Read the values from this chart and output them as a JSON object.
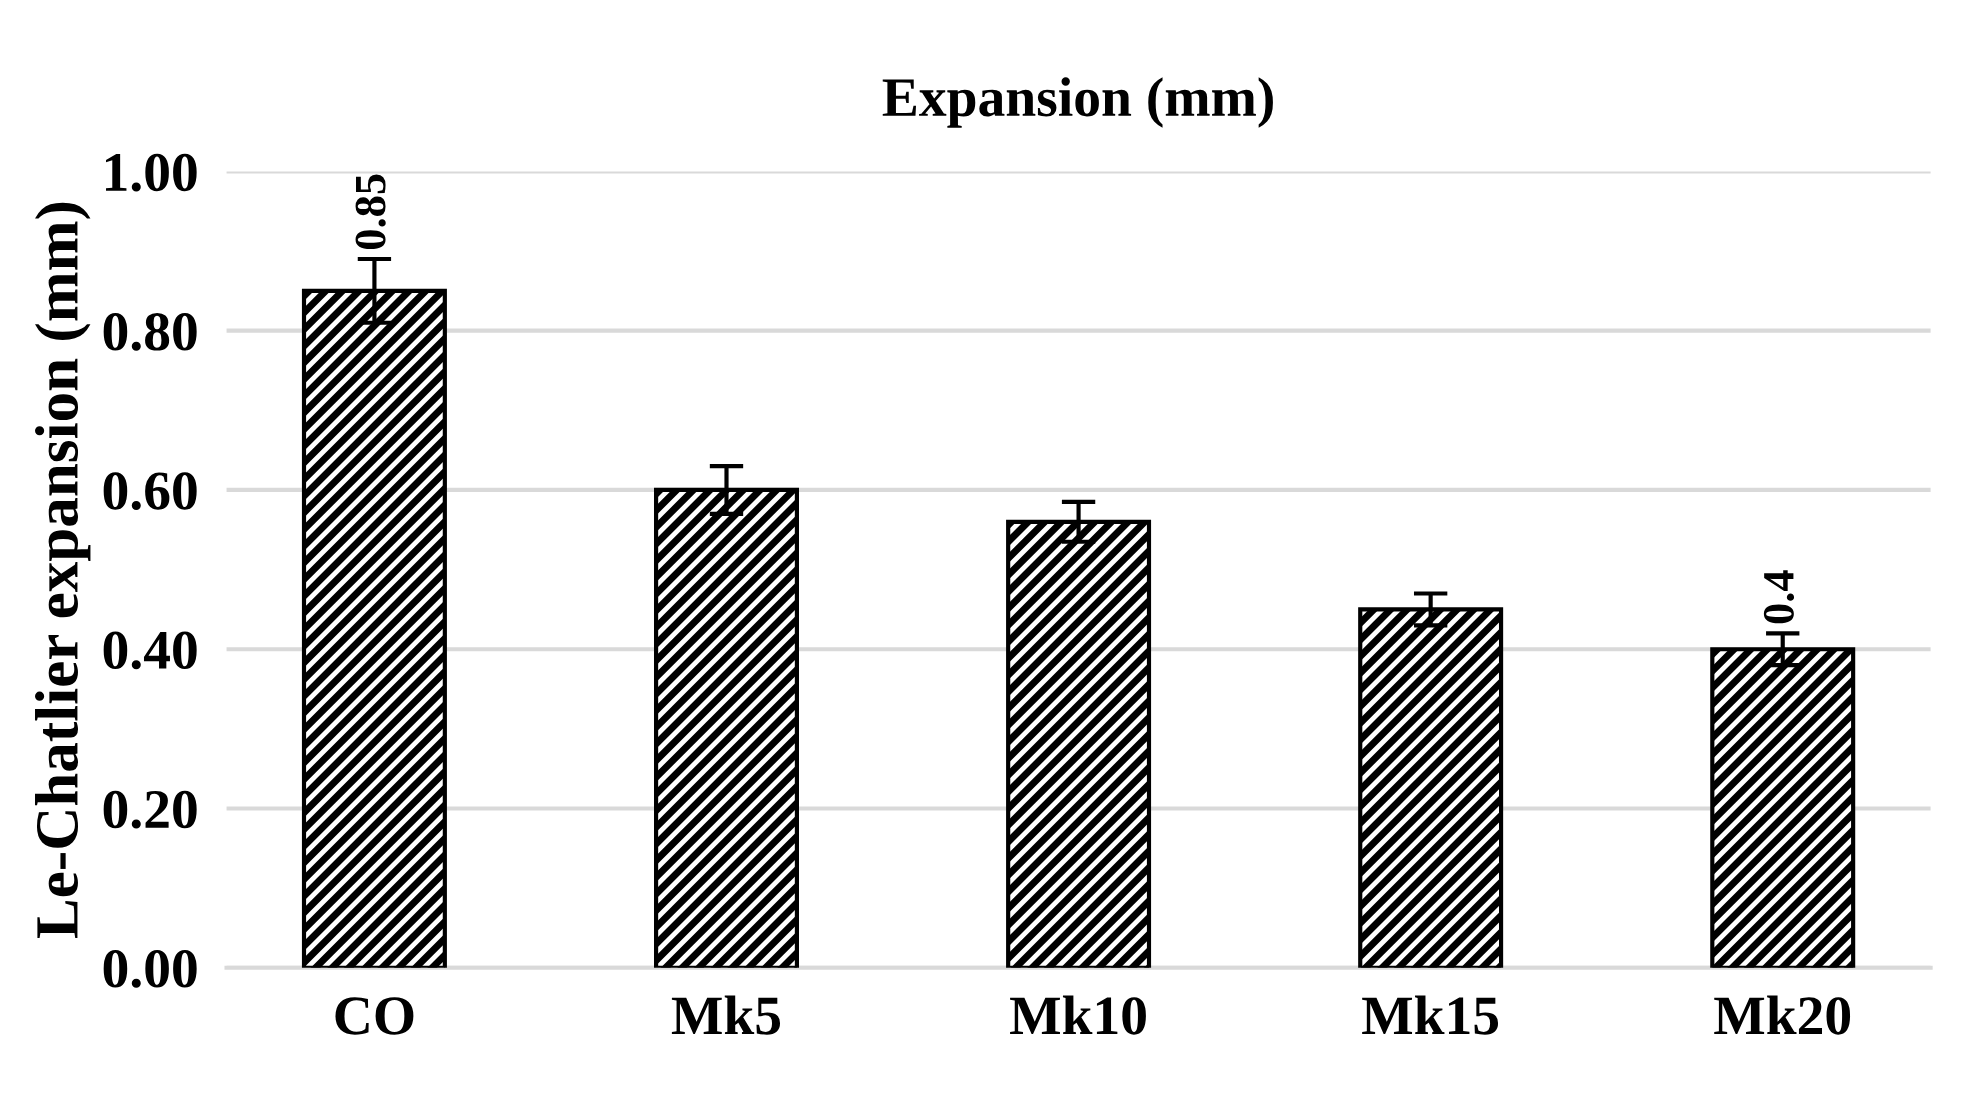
{
  "chart_data": {
    "type": "bar",
    "title": "Expansion (mm)",
    "ylabel": "Le-Chatlier expansion (mm)",
    "categories": [
      "CO",
      "Mk5",
      "Mk10",
      "Mk15",
      "Mk20"
    ],
    "values": [
      0.85,
      0.6,
      0.56,
      0.45,
      0.4
    ],
    "errors": [
      0.04,
      0.03,
      0.025,
      0.02,
      0.02
    ],
    "value_labels": [
      "0.85",
      null,
      null,
      null,
      "0.4"
    ],
    "color": "#000000",
    "ylim": [
      0,
      1.0
    ],
    "yticks": [
      {
        "value": 0,
        "label": "0.00"
      },
      {
        "value": 0.2,
        "label": "0.20"
      },
      {
        "value": 0.4,
        "label": "0.40"
      },
      {
        "value": 0.6,
        "label": "0.60"
      },
      {
        "value": 0.8,
        "label": "0.80"
      },
      {
        "value": 1.0,
        "label": "1.00"
      }
    ],
    "grid": "y"
  }
}
